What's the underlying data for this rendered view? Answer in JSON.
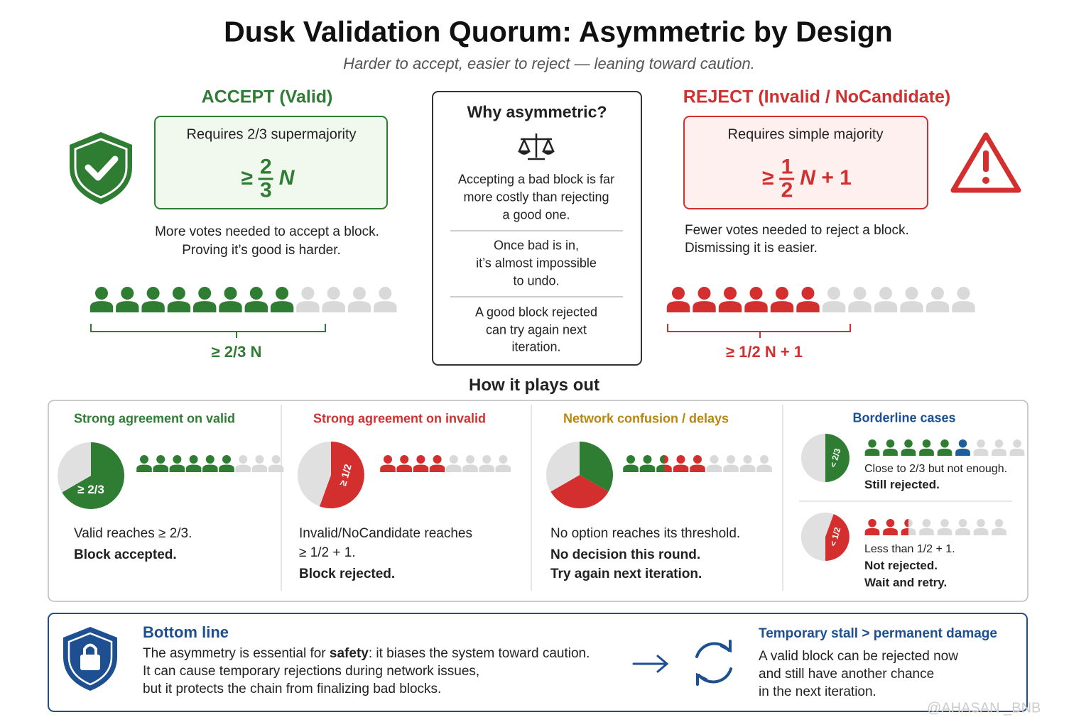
{
  "title": "Dusk Validation Quorum: Asymmetric by Design",
  "subtitle": "Harder to accept, easier to reject — leaning toward caution.",
  "accept": {
    "heading": "ACCEPT (Valid)",
    "box_label": "Requires 2/3 supermajority",
    "formula": {
      "relation": "≥",
      "numerator": "2",
      "denominator": "3",
      "variable": "N"
    },
    "description": [
      "More votes needed to accept a block.",
      "Proving it’s good is harder."
    ],
    "bracket_label": "≥ 2/3 N"
  },
  "reject": {
    "heading": "REJECT (Invalid / NoCandidate)",
    "box_label": "Requires simple majority",
    "formula": {
      "relation": "≥",
      "numerator": "1",
      "denominator": "2",
      "variable": "N",
      "suffix": "+ 1"
    },
    "description": [
      "Fewer votes needed to reject a block.",
      "Dismissing it is easier."
    ],
    "bracket_label": "≥ 1/2 N + 1"
  },
  "why": {
    "title": "Why asymmetric?",
    "paragraphs": [
      [
        "Accepting a bad block is far",
        "more costly than rejecting",
        "a good one."
      ],
      [
        "Once bad is in,",
        "it’s almost impossible",
        "to undo."
      ],
      [
        "A good block rejected",
        "can try again next",
        "iteration."
      ]
    ]
  },
  "plays_out": {
    "title": "How it plays out",
    "cases": [
      {
        "title": "Strong agreement on valid",
        "pie_label": "≥ 2/3",
        "lines": [
          "Valid reaches ≥ 2/3."
        ],
        "bold_lines": [
          "Block accepted."
        ]
      },
      {
        "title": "Strong agreement on invalid",
        "pie_label": "≥ 1/2",
        "lines": [
          "Invalid/NoCandidate reaches",
          "≥ 1/2 + 1."
        ],
        "bold_lines": [
          "Block rejected."
        ]
      },
      {
        "title": "Network confusion / delays",
        "lines": [
          "No option reaches its threshold."
        ],
        "bold_lines": [
          "No decision this round.",
          "Try again next iteration."
        ]
      },
      {
        "title": "Borderline cases",
        "sub_cases": [
          {
            "pie_label": "< 2/3",
            "lines": [
              "Close to 2/3 but not enough."
            ],
            "bold_lines": [
              "Still rejected."
            ]
          },
          {
            "pie_label": "< 1/2",
            "lines": [
              "Less than 1/2 + 1."
            ],
            "bold_lines": [
              "Not rejected.",
              "Wait and retry."
            ]
          }
        ]
      }
    ]
  },
  "bottom_line": {
    "title": "Bottom line",
    "lines": [
      [
        "The asymmetry is essential for ",
        "safety",
        ": it biases the system toward caution."
      ],
      [
        "It can cause temporary rejections during network issues,"
      ],
      [
        "but it protects the chain from finalizing bad blocks."
      ]
    ],
    "right_title": "Temporary stall > permanent damage",
    "right_lines": [
      "A valid block can be rejected now",
      "and still have another chance",
      "in the next iteration."
    ]
  },
  "watermark": "@AHASAN _BNB"
}
